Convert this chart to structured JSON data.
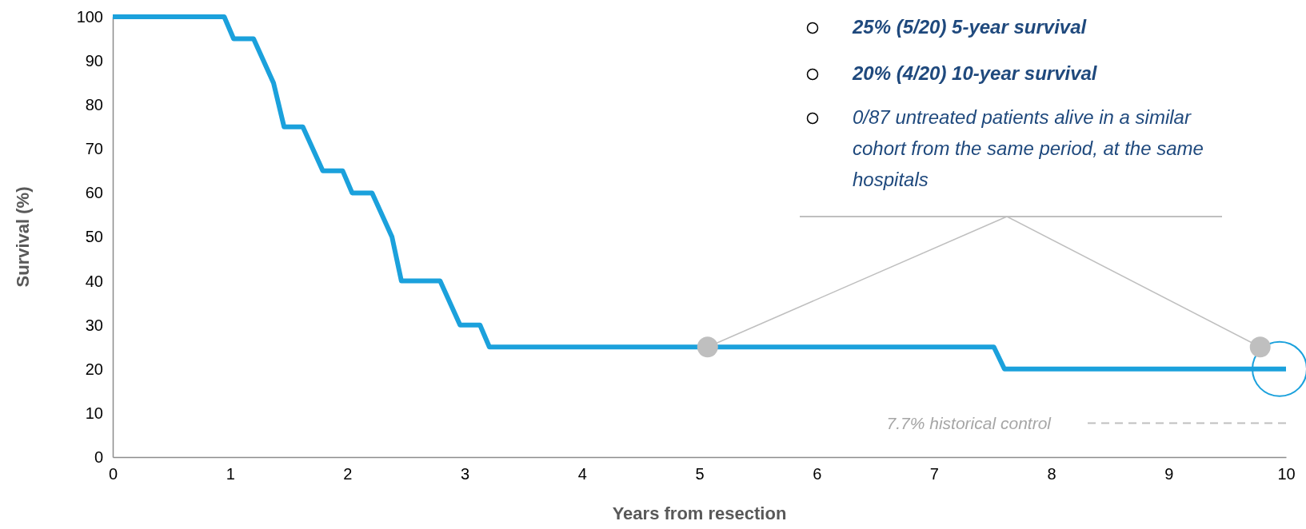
{
  "chart_data": {
    "type": "line",
    "xlabel": "Years from resection",
    "ylabel": "Survival (%)",
    "xlim": [
      0,
      10
    ],
    "xticks": [
      0,
      1,
      2,
      3,
      4,
      5,
      6,
      7,
      8,
      9,
      10
    ],
    "ylim": [
      0,
      100
    ],
    "yticks": [
      0,
      10,
      20,
      30,
      40,
      50,
      60,
      70,
      80,
      90,
      100
    ],
    "grid": false,
    "series": [
      {
        "color": "#1ba1dc",
        "x": [
          0,
          0.95,
          1.03,
          1.2,
          1.37,
          1.46,
          1.62,
          1.79,
          1.96,
          2.04,
          2.21,
          2.38,
          2.46,
          2.79,
          2.96,
          3.13,
          3.21,
          7.51,
          7.6,
          10
        ],
        "values": [
          100,
          100,
          95,
          95,
          85,
          75,
          75,
          65,
          65,
          60,
          60,
          50,
          40,
          40,
          30,
          30,
          25,
          25,
          20,
          20
        ]
      },
      {
        "type": "scatter",
        "color": "#bfbfbf",
        "marker": "circle",
        "x": [
          5.07,
          9.78
        ],
        "values": [
          25,
          25
        ]
      }
    ],
    "ref_lines": [
      {
        "axis": "y",
        "value": 7.7,
        "label": "7.7% historical control",
        "color": "#bfbfbf",
        "line_style": "dashed"
      }
    ],
    "annotations": [
      "25% (5/20) 5-year survival",
      "20% (4/20) 10-year survival",
      "0/87 untreated patients alive in a similar cohort from the same period, at the same hospitals"
    ]
  }
}
